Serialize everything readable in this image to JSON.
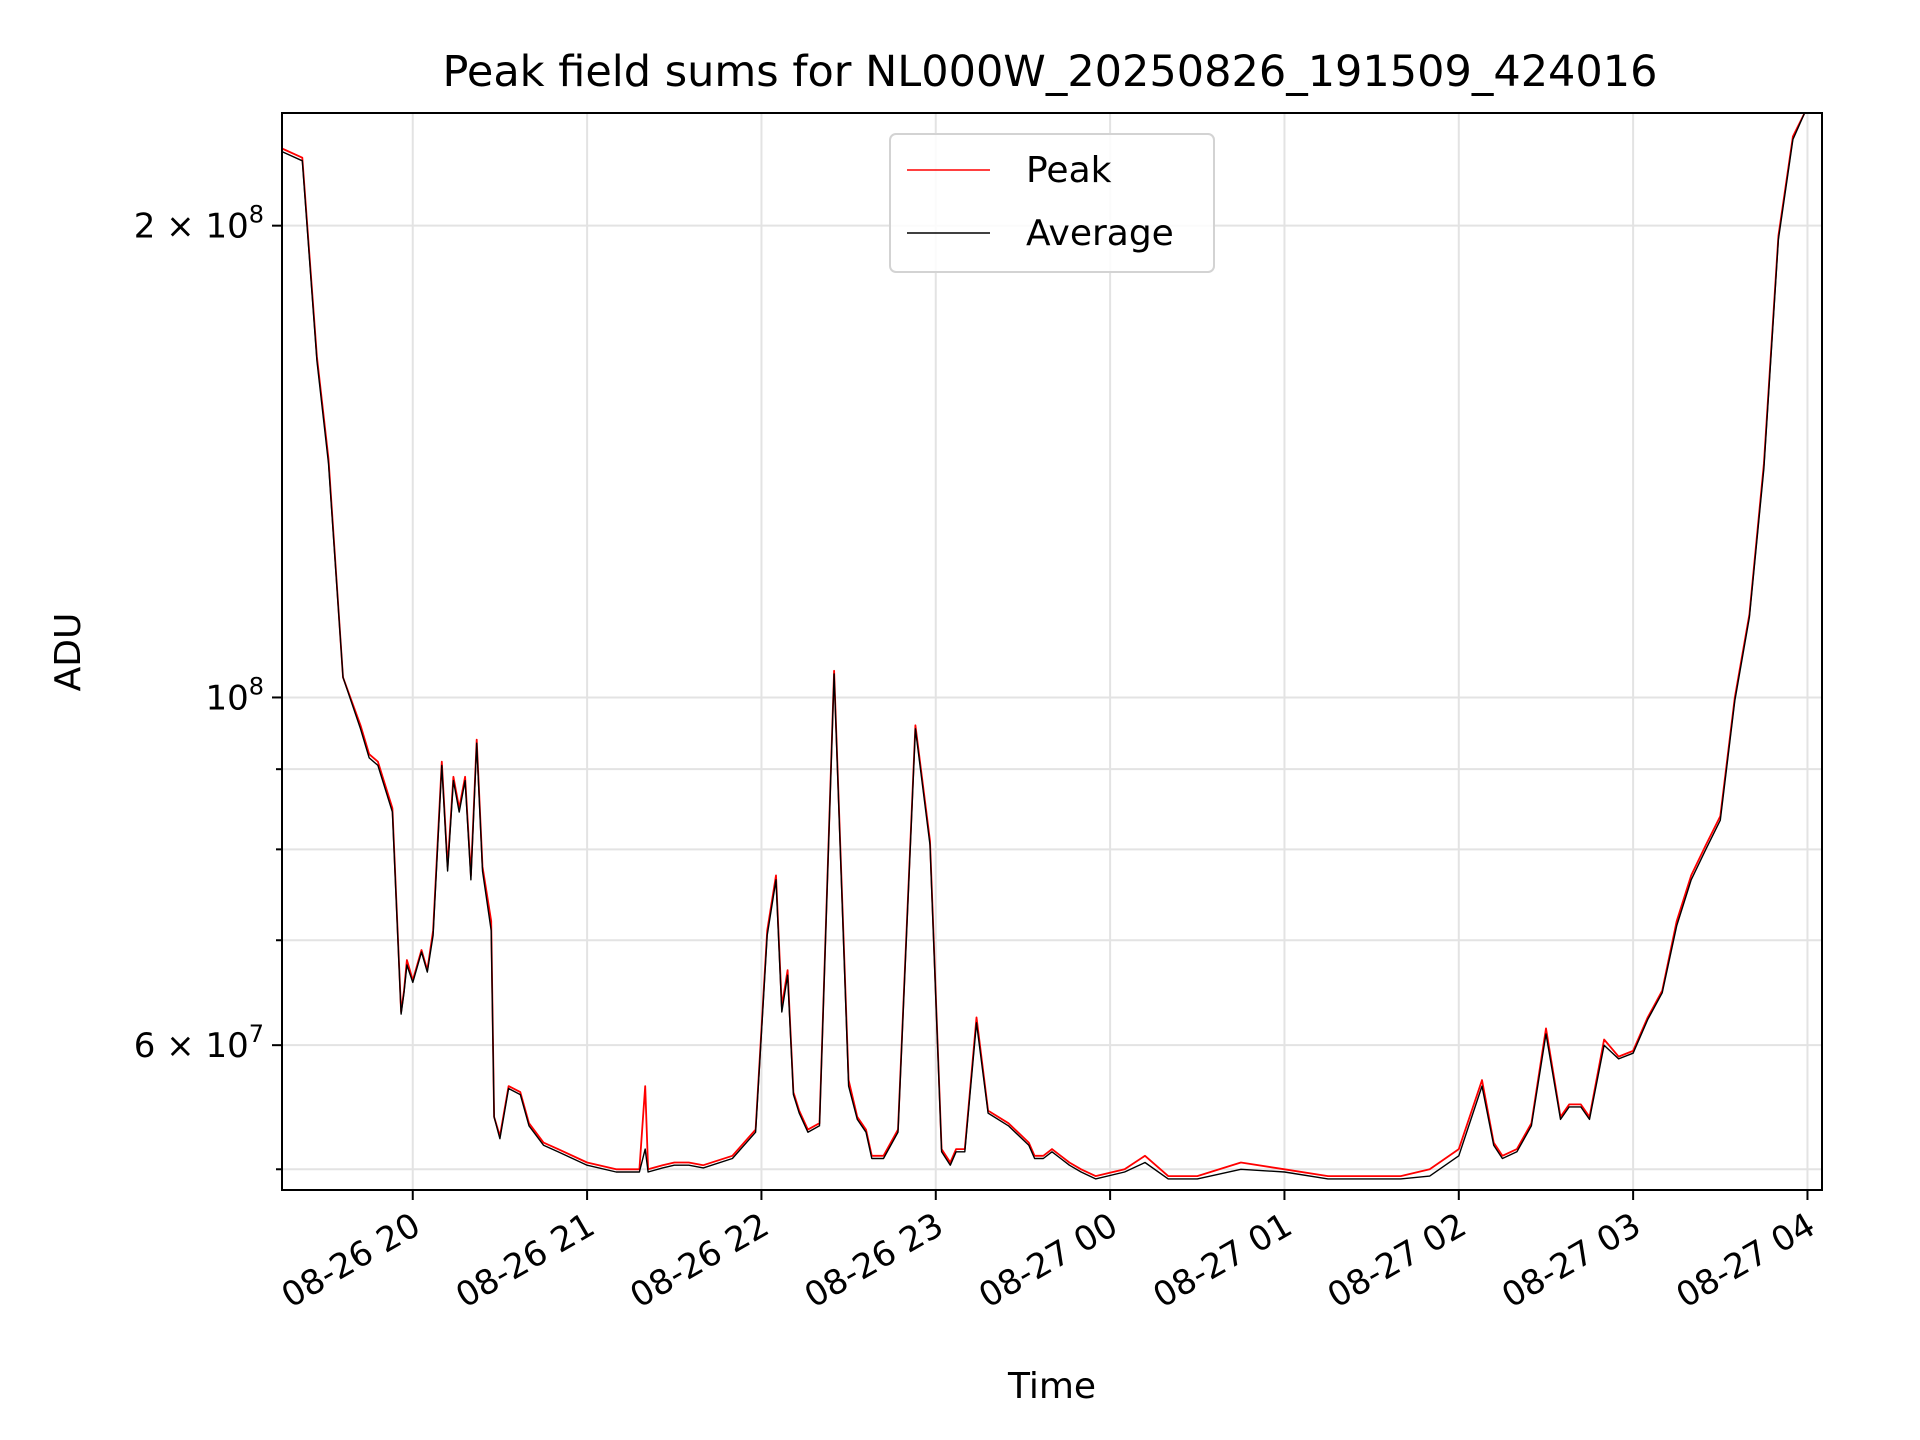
{
  "chart_data": {
    "type": "line",
    "title": "Peak field sums for NL000W_20250826_191509_424016",
    "xlabel": "Time",
    "ylabel": "ADU",
    "yscale": "log",
    "ylim": [
      48500000,
      236000000
    ],
    "xlim": [
      "08-26 19:15",
      "08-27 04:05"
    ],
    "grid": true,
    "legend": {
      "placement": "top-center",
      "entries": [
        "Peak",
        "Average"
      ]
    },
    "x_ticks": [
      "08-26 20",
      "08-26 21",
      "08-26 22",
      "08-26 23",
      "08-27 00",
      "08-27 01",
      "08-27 02",
      "08-27 03",
      "08-27 04"
    ],
    "y_ticks": [
      {
        "value": 200000000,
        "base": "2",
        "exp": "8"
      },
      {
        "value": 100000000,
        "base": "10",
        "exp": "8"
      },
      {
        "value": 60000000,
        "base": "6",
        "exp": "7"
      }
    ],
    "y_minor_ticks": [
      50000000,
      70000000,
      80000000,
      90000000
    ],
    "series": [
      {
        "name": "Peak",
        "color": "#ff0000",
        "x": [
          "08-26 19:15",
          "08-26 19:22",
          "08-26 19:27",
          "08-26 19:31",
          "08-26 19:36",
          "08-26 19:42",
          "08-26 19:45",
          "08-26 19:48",
          "08-26 19:53",
          "08-26 19:56",
          "08-26 19:57",
          "08-26 19:58",
          "08-26 20:00",
          "08-26 20:03",
          "08-26 20:05",
          "08-26 20:07",
          "08-26 20:10",
          "08-26 20:12",
          "08-26 20:14",
          "08-26 20:16",
          "08-26 20:18",
          "08-26 20:20",
          "08-26 20:22",
          "08-26 20:24",
          "08-26 20:27",
          "08-26 20:28",
          "08-26 20:30",
          "08-26 20:33",
          "08-26 20:37",
          "08-26 20:40",
          "08-26 20:45",
          "08-26 20:50",
          "08-26 21:00",
          "08-26 21:10",
          "08-26 21:18",
          "08-26 21:20",
          "08-26 21:21",
          "08-26 21:26",
          "08-26 21:30",
          "08-26 21:35",
          "08-26 21:40",
          "08-26 21:50",
          "08-26 21:58",
          "08-26 22:02",
          "08-26 22:05",
          "08-26 22:07",
          "08-26 22:09",
          "08-26 22:11",
          "08-26 22:13",
          "08-26 22:16",
          "08-26 22:20",
          "08-26 22:25",
          "08-26 22:30",
          "08-26 22:33",
          "08-26 22:36",
          "08-26 22:38",
          "08-26 22:42",
          "08-26 22:47",
          "08-26 22:53",
          "08-26 22:58",
          "08-26 23:02",
          "08-26 23:05",
          "08-26 23:07",
          "08-26 23:10",
          "08-26 23:14",
          "08-26 23:18",
          "08-26 23:25",
          "08-26 23:32",
          "08-26 23:34",
          "08-26 23:37",
          "08-26 23:40",
          "08-26 23:43",
          "08-26 23:46",
          "08-26 23:50",
          "08-26 23:55",
          "08-27 00:05",
          "08-27 00:12",
          "08-27 00:20",
          "08-27 00:30",
          "08-27 00:45",
          "08-27 01:00",
          "08-27 01:15",
          "08-27 01:30",
          "08-27 01:40",
          "08-27 01:50",
          "08-27 02:00",
          "08-27 02:08",
          "08-27 02:12",
          "08-27 02:15",
          "08-27 02:20",
          "08-27 02:25",
          "08-27 02:30",
          "08-27 02:35",
          "08-27 02:38",
          "08-27 02:42",
          "08-27 02:45",
          "08-27 02:50",
          "08-27 02:55",
          "08-27 03:00",
          "08-27 03:05",
          "08-27 03:10",
          "08-27 03:15",
          "08-27 03:20",
          "08-27 03:25",
          "08-27 03:30",
          "08-27 03:35",
          "08-27 03:40",
          "08-27 03:45",
          "08-27 03:50",
          "08-27 03:55",
          "08-27 03:59"
        ],
        "values": [
          224000000,
          221000000,
          165000000,
          142000000,
          103000000,
          96000000,
          92000000,
          91000000,
          85000000,
          63000000,
          65000000,
          68000000,
          66000000,
          69000000,
          67000000,
          71000000,
          91000000,
          78000000,
          89000000,
          85000000,
          89000000,
          77000000,
          94000000,
          78000000,
          72000000,
          54000000,
          52500000,
          56500000,
          56000000,
          53500000,
          52000000,
          51500000,
          50500000,
          50000000,
          50000000,
          56500000,
          50000000,
          50300000,
          50500000,
          50500000,
          50300000,
          51000000,
          53000000,
          71000000,
          77000000,
          63500000,
          67000000,
          56000000,
          54500000,
          53000000,
          53500000,
          104000000,
          57000000,
          54000000,
          53000000,
          51000000,
          51000000,
          53000000,
          96000000,
          81000000,
          51500000,
          50500000,
          51500000,
          51500000,
          62500000,
          54500000,
          53500000,
          52000000,
          51000000,
          51000000,
          51500000,
          51000000,
          50500000,
          50000000,
          49500000,
          50000000,
          51000000,
          49500000,
          49500000,
          50500000,
          50000000,
          49500000,
          49500000,
          49500000,
          50000000,
          51500000,
          57000000,
          52000000,
          51000000,
          51500000,
          53500000,
          61500000,
          54000000,
          55000000,
          55000000,
          54000000,
          60500000,
          59000000,
          59500000,
          62500000,
          65000000,
          72000000,
          77000000,
          80500000,
          84000000,
          100000000,
          113000000,
          141000000,
          197000000,
          228000000,
          236000000
        ]
      },
      {
        "name": "Average",
        "color": "#000000",
        "x": [
          "08-26 19:15",
          "08-26 19:22",
          "08-26 19:27",
          "08-26 19:31",
          "08-26 19:36",
          "08-26 19:42",
          "08-26 19:45",
          "08-26 19:48",
          "08-26 19:53",
          "08-26 19:56",
          "08-26 19:57",
          "08-26 19:58",
          "08-26 20:00",
          "08-26 20:03",
          "08-26 20:05",
          "08-26 20:07",
          "08-26 20:10",
          "08-26 20:12",
          "08-26 20:14",
          "08-26 20:16",
          "08-26 20:18",
          "08-26 20:20",
          "08-26 20:22",
          "08-26 20:24",
          "08-26 20:27",
          "08-26 20:28",
          "08-26 20:30",
          "08-26 20:33",
          "08-26 20:37",
          "08-26 20:40",
          "08-26 20:45",
          "08-26 20:50",
          "08-26 21:00",
          "08-26 21:10",
          "08-26 21:18",
          "08-26 21:20",
          "08-26 21:21",
          "08-26 21:26",
          "08-26 21:30",
          "08-26 21:35",
          "08-26 21:40",
          "08-26 21:50",
          "08-26 21:58",
          "08-26 22:02",
          "08-26 22:05",
          "08-26 22:07",
          "08-26 22:09",
          "08-26 22:11",
          "08-26 22:13",
          "08-26 22:16",
          "08-26 22:20",
          "08-26 22:25",
          "08-26 22:30",
          "08-26 22:33",
          "08-26 22:36",
          "08-26 22:38",
          "08-26 22:42",
          "08-26 22:47",
          "08-26 22:53",
          "08-26 22:58",
          "08-26 23:02",
          "08-26 23:05",
          "08-26 23:07",
          "08-26 23:10",
          "08-26 23:14",
          "08-26 23:18",
          "08-26 23:25",
          "08-26 23:32",
          "08-26 23:34",
          "08-26 23:37",
          "08-26 23:40",
          "08-26 23:43",
          "08-26 23:46",
          "08-26 23:50",
          "08-26 23:55",
          "08-27 00:05",
          "08-27 00:12",
          "08-27 00:20",
          "08-27 00:30",
          "08-27 00:45",
          "08-27 01:00",
          "08-27 01:15",
          "08-27 01:30",
          "08-27 01:40",
          "08-27 01:50",
          "08-27 02:00",
          "08-27 02:08",
          "08-27 02:12",
          "08-27 02:15",
          "08-27 02:20",
          "08-27 02:25",
          "08-27 02:30",
          "08-27 02:35",
          "08-27 02:38",
          "08-27 02:42",
          "08-27 02:45",
          "08-27 02:50",
          "08-27 02:55",
          "08-27 03:00",
          "08-27 03:05",
          "08-27 03:10",
          "08-27 03:15",
          "08-27 03:20",
          "08-27 03:25",
          "08-27 03:30",
          "08-27 03:35",
          "08-27 03:40",
          "08-27 03:45",
          "08-27 03:50",
          "08-27 03:55",
          "08-27 03:59"
        ],
        "values": [
          223000000,
          220000000,
          164000000,
          141000000,
          103000000,
          95500000,
          91500000,
          90500000,
          84500000,
          62800000,
          64800000,
          67500000,
          65800000,
          68800000,
          66800000,
          70500000,
          90500000,
          77500000,
          88500000,
          84500000,
          88500000,
          76500000,
          93500000,
          77500000,
          71000000,
          54000000,
          52300000,
          56300000,
          55800000,
          53300000,
          51800000,
          51300000,
          50300000,
          49800000,
          49800000,
          51500000,
          49800000,
          50100000,
          50300000,
          50300000,
          50100000,
          50800000,
          52800000,
          70500000,
          76500000,
          63000000,
          66500000,
          55800000,
          54300000,
          52800000,
          53300000,
          103500000,
          56500000,
          53800000,
          52800000,
          50800000,
          50800000,
          52800000,
          95500000,
          80500000,
          51300000,
          50300000,
          51300000,
          51300000,
          62000000,
          54300000,
          53300000,
          51800000,
          50800000,
          50800000,
          51300000,
          50800000,
          50300000,
          49800000,
          49300000,
          49800000,
          50500000,
          49300000,
          49300000,
          50000000,
          49800000,
          49300000,
          49300000,
          49300000,
          49500000,
          51000000,
          56500000,
          51800000,
          50800000,
          51300000,
          53300000,
          61000000,
          53800000,
          54800000,
          54800000,
          53800000,
          60000000,
          58800000,
          59300000,
          62300000,
          64800000,
          71500000,
          76500000,
          80000000,
          83500000,
          99500000,
          112500000,
          140000000,
          196000000,
          227000000,
          236000000
        ]
      }
    ]
  }
}
